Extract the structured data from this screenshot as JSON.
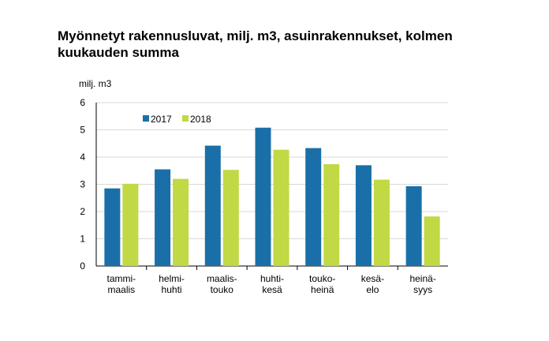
{
  "chart_data": {
    "type": "bar",
    "title": "Myönnetyt rakennusluvat, milj. m3, asuinrakennukset, kolmen kuukauden summa",
    "ylabel": "milj. m3",
    "ylim": [
      0,
      6
    ],
    "yticks": [
      0,
      1,
      2,
      3,
      4,
      5,
      6
    ],
    "grid": true,
    "legend_position": "top-left",
    "categories": [
      [
        "tammi-",
        "maalis"
      ],
      [
        "helmi-",
        "huhti"
      ],
      [
        "maalis-",
        "touko"
      ],
      [
        "huhti-",
        "kesä"
      ],
      [
        "touko-",
        "heinä"
      ],
      [
        "kesä-",
        "elo"
      ],
      [
        "heinä-",
        "syys"
      ]
    ],
    "series": [
      {
        "name": "2017",
        "color": "#1a6fa8",
        "values": [
          2.85,
          3.55,
          4.42,
          5.08,
          4.33,
          3.7,
          2.93
        ]
      },
      {
        "name": "2018",
        "color": "#c0d944",
        "values": [
          3.02,
          3.2,
          3.53,
          4.27,
          3.74,
          3.17,
          1.82
        ]
      }
    ]
  }
}
